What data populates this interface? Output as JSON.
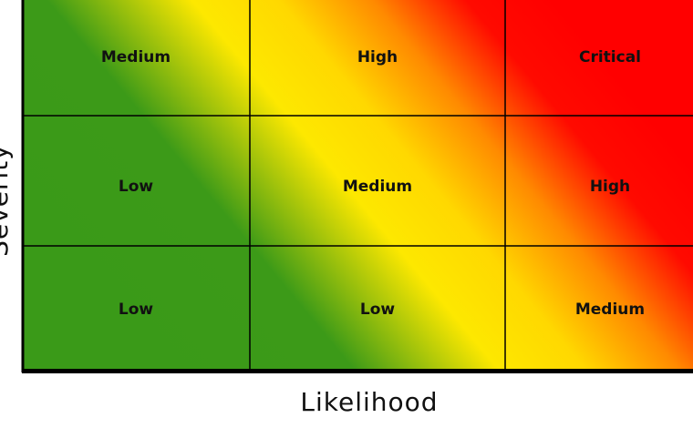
{
  "matrix": {
    "rows": [
      [
        "Medium",
        "High",
        "Critical"
      ],
      [
        "Low",
        "Medium",
        "High"
      ],
      [
        "Low",
        "Low",
        "Medium"
      ]
    ]
  },
  "x_axis_label": "Likelihood",
  "y_axis_label": "Severity"
}
